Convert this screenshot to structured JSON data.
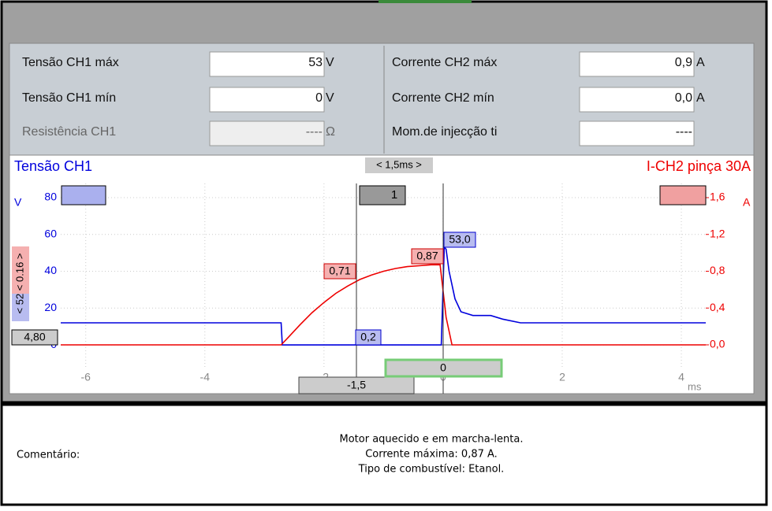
{
  "panel": {
    "rows": [
      {
        "label": "Tensão CH1 máx",
        "value": "53",
        "unit": "V"
      },
      {
        "label": "Corrente CH2 máx",
        "value": "0,9",
        "unit": "A"
      },
      {
        "label": "Tensão CH1 mín",
        "value": "0",
        "unit": "V"
      },
      {
        "label": "Corrente CH2 mín",
        "value": "0,0",
        "unit": "A"
      },
      {
        "label": "Resistência CH1",
        "value": "----",
        "unit": "Ω"
      },
      {
        "label": "Mom.de injecção ti",
        "value": "----"
      }
    ]
  },
  "chart_data": {
    "type": "line",
    "left_title": "Tensão CH1",
    "right_title": "I-CH2 pinça 30A",
    "y_label": "V",
    "y2_label": "A",
    "x_label": "ms",
    "xlim": [
      -6.42,
      4.41
    ],
    "xticks": [
      -6,
      -4,
      -2,
      0,
      2,
      4
    ],
    "ylim": [
      -12.8,
      87.7
    ],
    "yticks": [
      0,
      20,
      40,
      60,
      80
    ],
    "y2lim": [
      -0.257,
      1.754
    ],
    "y2ticks": [
      {
        "value": 0,
        "label": "0,0"
      },
      {
        "value": 0.4,
        "label": "0,4"
      },
      {
        "value": 0.8,
        "label": "0,8"
      },
      {
        "value": 1.2,
        "label": "1,2"
      },
      {
        "value": 1.6,
        "label": "1,6"
      }
    ],
    "grid": true,
    "series": [
      {
        "name": "Tensão CH1",
        "color": "#0000dd",
        "x": [
          -6.42,
          -2.72,
          -2.7,
          -0.03,
          0.02,
          0.05,
          0.1,
          0.2,
          0.3,
          0.5,
          0.8,
          1.0,
          1.3,
          4.41
        ],
        "values": [
          12,
          12,
          0,
          0,
          53,
          52,
          40,
          25,
          18,
          16,
          16,
          14,
          12,
          12
        ]
      },
      {
        "name": "I-CH2 pinça 30A",
        "color": "#ee0000",
        "axis": "y2",
        "x": [
          -6.42,
          -2.72,
          -2.6,
          -2.4,
          -2.2,
          -2.0,
          -1.8,
          -1.6,
          -1.4,
          -1.2,
          -1.0,
          -0.8,
          -0.6,
          -0.4,
          -0.2,
          -0.05,
          0.05,
          0.15,
          4.41
        ],
        "values": [
          0,
          0,
          0.08,
          0.22,
          0.35,
          0.46,
          0.56,
          0.64,
          0.71,
          0.76,
          0.8,
          0.83,
          0.85,
          0.86,
          0.87,
          0.87,
          0.3,
          0,
          0
        ]
      }
    ],
    "annotations": [
      "0,71",
      "0,87",
      "53,0",
      "0,2",
      "4,80",
      "< 1,5ms >",
      "-1,5",
      "0",
      "< 52 < 0.16 >",
      "1"
    ]
  },
  "comment": {
    "label": "Comentário:",
    "lines": [
      "Motor aquecido e em marcha-lenta.",
      "Corrente máxima: 0,87 A.",
      "Tipo de combustível: Etanol."
    ]
  }
}
